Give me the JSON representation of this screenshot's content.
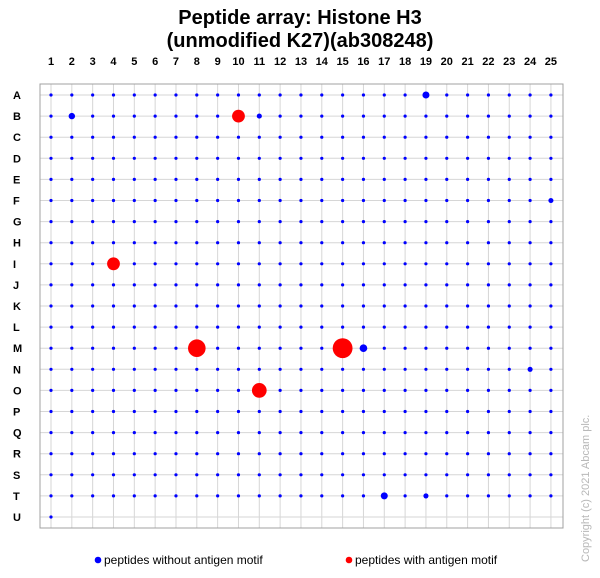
{
  "chart_data": {
    "type": "scatter",
    "title_line1": "Peptide array:  Histone H3",
    "title_line2": "(unmodified K27)(ab308248)",
    "columns": [
      "1",
      "2",
      "3",
      "4",
      "5",
      "6",
      "7",
      "8",
      "9",
      "10",
      "11",
      "12",
      "13",
      "14",
      "15",
      "16",
      "17",
      "18",
      "19",
      "20",
      "21",
      "22",
      "23",
      "24",
      "25"
    ],
    "rows": [
      "A",
      "B",
      "C",
      "D",
      "E",
      "F",
      "G",
      "H",
      "I",
      "J",
      "K",
      "L",
      "M",
      "N",
      "O",
      "P",
      "Q",
      "R",
      "S",
      "T",
      "U"
    ],
    "last_row_columns": 1,
    "series": [
      {
        "name": "peptides without antigen motif",
        "color": "#0000ff"
      },
      {
        "name": "peptides with antigen motif",
        "color": "#ff0000"
      }
    ],
    "highlighted_spots": [
      {
        "row": "A",
        "col": 19,
        "series": 0,
        "size": 2.2
      },
      {
        "row": "B",
        "col": 2,
        "series": 0,
        "size": 2.0
      },
      {
        "row": "B",
        "col": 11,
        "series": 0,
        "size": 1.6
      },
      {
        "row": "B",
        "col": 10,
        "series": 1,
        "size": 4.0
      },
      {
        "row": "I",
        "col": 4,
        "series": 1,
        "size": 4.0
      },
      {
        "row": "M",
        "col": 8,
        "series": 1,
        "size": 5.5
      },
      {
        "row": "M",
        "col": 15,
        "series": 1,
        "size": 6.2
      },
      {
        "row": "M",
        "col": 16,
        "series": 0,
        "size": 2.4
      },
      {
        "row": "O",
        "col": 11,
        "series": 1,
        "size": 4.6
      },
      {
        "row": "T",
        "col": 17,
        "series": 0,
        "size": 2.2
      },
      {
        "row": "T",
        "col": 19,
        "series": 0,
        "size": 1.6
      },
      {
        "row": "F",
        "col": 25,
        "series": 0,
        "size": 1.6
      },
      {
        "row": "N",
        "col": 24,
        "series": 0,
        "size": 1.6
      }
    ],
    "default_spot_size": 1.0,
    "legend_placement": "bottom",
    "grid": true
  },
  "copyright": "Copyright (c) 2021 Abcam plc."
}
